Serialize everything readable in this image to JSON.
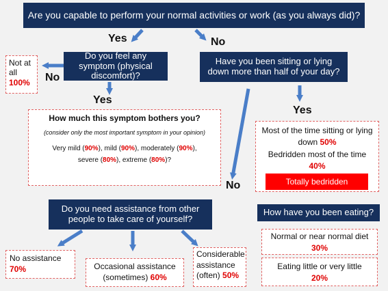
{
  "q_top": "Are you capable to perform your normal activities or work (as you always did)?",
  "top_yes": "Yes",
  "top_no": "No",
  "q_symptom": "Do you feel any symptom (physical discomfort)?",
  "symptom_no": "No",
  "symptom_yes": "Yes",
  "not_at_all": {
    "label": "Not at all",
    "pct": "100%"
  },
  "bother": {
    "title": "How much this symptom bothers you?",
    "note": "(consider only the most important symptom in your opinion)",
    "l1_a": "Very mild (",
    "l1_b": "90%",
    "l1_c": "), mild (",
    "l1_d": "90%",
    "l1_e": "), moderately (",
    "l1_f": "90%",
    "l1_g": "),",
    "l2_a": "severe (",
    "l2_b": "80%",
    "l2_c": "), extreme (",
    "l2_d": "80%",
    "l2_e": ")?"
  },
  "q_sitting": "Have you been sitting or lying down more than half of your day?",
  "sitting_yes": "Yes",
  "sitting_detail": {
    "a": "Most of the time sitting or lying down ",
    "a_pct": "50%",
    "b": "Bedridden most of the time ",
    "b_pct": "40%"
  },
  "totally_bedridden": "Totally bedridden",
  "mid_no": "No",
  "q_assistance": "Do you need  assistance from other people to take care of yourself?",
  "no_assistance": {
    "label": "No assistance",
    "pct": "70%"
  },
  "occasional": {
    "label1": "Occasional assistance",
    "label2": "(sometimes) ",
    "pct": "60%"
  },
  "considerable": {
    "label1": "Considerable",
    "label2": "assistance",
    "label3": "(often) ",
    "pct": "50%"
  },
  "q_eating": "How have you been eating?",
  "eating_normal": {
    "label": "Normal or near normal diet",
    "pct": "30%"
  },
  "eating_little": {
    "label": "Eating little or very little",
    "pct": "20%"
  },
  "colors": {
    "navy": "#16305c",
    "arrow": "#4a7ec8",
    "accent_red": "#e00000",
    "dash": "#e06060"
  }
}
